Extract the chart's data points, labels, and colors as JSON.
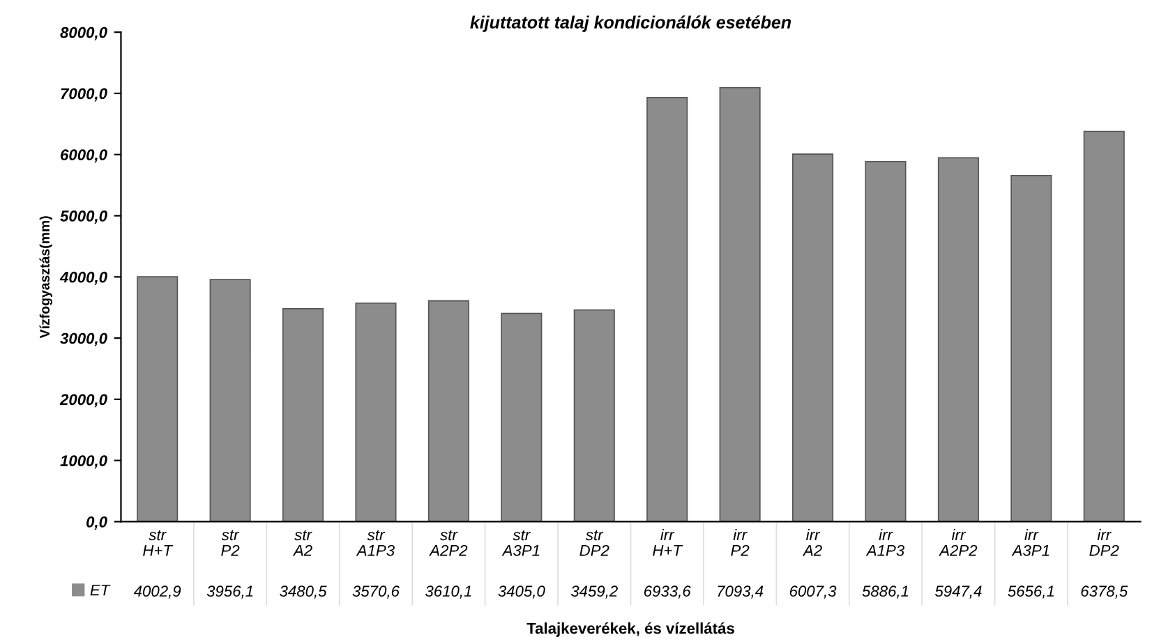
{
  "chart_data": {
    "type": "bar",
    "title": "kijuttatott talaj kondicionálók esetében",
    "xlabel": "Talajkeverékek, és vízellátás",
    "ylabel": "Vízfogyasztás(mm)",
    "categories": [
      "str\nH+T",
      "str\nP2",
      "str\nA2",
      "str\nA1P3",
      "str\nA2P2",
      "str\nA3P1",
      "str\nDP2",
      "irr\nH+T",
      "irr\nP2",
      "irr\nA2",
      "irr\nA1P3",
      "irr\nA2P2",
      "irr\nA3P1",
      "irr\nDP2"
    ],
    "series": [
      {
        "name": "ET",
        "color": "#8c8c8c",
        "values": [
          4002.9,
          3956.1,
          3480.5,
          3570.6,
          3610.1,
          3405.0,
          3459.2,
          6933.6,
          7093.4,
          6007.3,
          5886.1,
          5947.4,
          5656.1,
          6378.5
        ],
        "value_labels": [
          "4002,9",
          "3956,1",
          "3480,5",
          "3570,6",
          "3610,1",
          "3405,0",
          "3459,2",
          "6933,6",
          "7093,4",
          "6007,3",
          "5886,1",
          "5947,4",
          "5656,1",
          "6378,5"
        ]
      }
    ],
    "ylim": [
      0,
      8000
    ],
    "yticks": [
      {
        "value": 0,
        "label": "0,0"
      },
      {
        "value": 1000,
        "label": "1000,0"
      },
      {
        "value": 2000,
        "label": "2000,0"
      },
      {
        "value": 3000,
        "label": "3000,0"
      },
      {
        "value": 4000,
        "label": "4000,0"
      },
      {
        "value": 5000,
        "label": "5000,0"
      },
      {
        "value": 6000,
        "label": "6000,0"
      },
      {
        "value": 7000,
        "label": "7000,0"
      },
      {
        "value": 8000,
        "label": "8000,0"
      }
    ],
    "grid": false,
    "legend": "bottom left"
  }
}
